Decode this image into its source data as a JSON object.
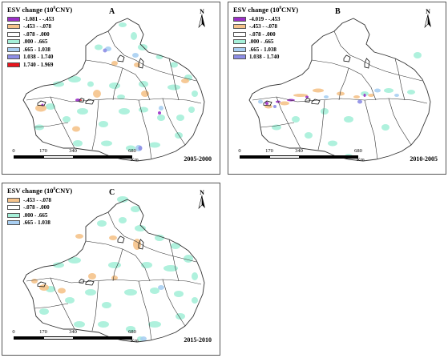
{
  "legend_title_main": "ESV change (10",
  "legend_title_exp": "8",
  "legend_title_unit": "CNY)",
  "panels": [
    {
      "letter": "A",
      "period": "2005-2000",
      "legend": [
        {
          "label": "-1.081 - -.453",
          "color": "#9b2fc7"
        },
        {
          "label": "-.453 - -.078",
          "color": "#f5c38b"
        },
        {
          "label": "-.078 - .000",
          "color": "#ffffff"
        },
        {
          "label": ".000 - .665",
          "color": "#a6f0d9"
        },
        {
          "label": ".665 - 1.038",
          "color": "#a9cff2"
        },
        {
          "label": "1.038 - 1.740",
          "color": "#8d8ee6"
        },
        {
          "label": "1.740 - 1.969",
          "color": "#e8141d"
        }
      ]
    },
    {
      "letter": "B",
      "period": "2010-2005",
      "legend": [
        {
          "label": "-4.019 - -.453",
          "color": "#9b2fc7"
        },
        {
          "label": "-.453 - -.078",
          "color": "#f5c38b"
        },
        {
          "label": "-.078 - .000",
          "color": "#ffffff"
        },
        {
          "label": ".000 - .665",
          "color": "#a6f0d9"
        },
        {
          "label": ".665 - 1.038",
          "color": "#a9cff2"
        },
        {
          "label": "1.038 - 1.740",
          "color": "#8d8ee6"
        }
      ]
    },
    {
      "letter": "C",
      "period": "2015-2010",
      "legend": [
        {
          "label": "-.453 - -.078",
          "color": "#f5c38b"
        },
        {
          "label": "-.078 - .000",
          "color": "#ffffff"
        },
        {
          "label": ".000 - .665",
          "color": "#a6f0d9"
        },
        {
          "label": ".665 - 1.038",
          "color": "#a9cff2"
        }
      ]
    }
  ],
  "north_label": "N",
  "scale_ticks": [
    "0",
    "170",
    "340",
    "680"
  ],
  "scale_unit": "Km"
}
